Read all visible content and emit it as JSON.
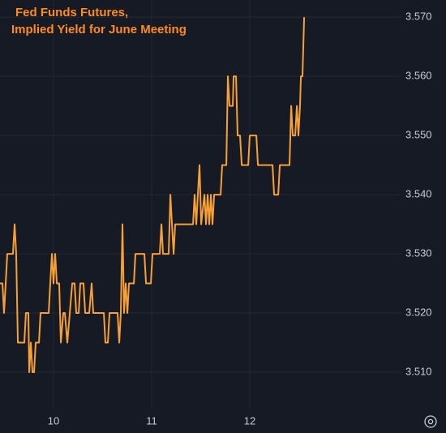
{
  "chart_data": {
    "type": "line",
    "title": [
      "Fed Funds Futures,",
      "Implied Yield for June Meeting"
    ],
    "x": [
      9.455,
      9.48,
      9.496,
      9.513,
      9.529,
      9.587,
      9.604,
      9.62,
      9.637,
      9.703,
      9.719,
      9.744,
      9.753,
      9.769,
      9.786,
      9.802,
      9.819,
      9.852,
      9.868,
      9.951,
      9.967,
      9.984,
      10.0,
      10.017,
      10.034,
      10.058,
      10.075,
      10.1,
      10.116,
      10.141,
      10.166,
      10.191,
      10.215,
      10.232,
      10.257,
      10.273,
      10.306,
      10.323,
      10.364,
      10.389,
      10.405,
      10.513,
      10.529,
      10.554,
      10.571,
      10.653,
      10.67,
      10.686,
      10.703,
      10.719,
      10.736,
      10.753,
      10.769,
      10.819,
      10.835,
      10.926,
      10.943,
      10.992,
      11.009,
      11.083,
      11.1,
      11.116,
      11.174,
      11.191,
      11.207,
      11.224,
      11.24,
      11.257,
      11.422,
      11.438,
      11.455,
      11.471,
      11.488,
      11.505,
      11.538,
      11.554,
      11.571,
      11.587,
      11.604,
      11.62,
      11.637,
      11.703,
      11.719,
      11.761,
      11.777,
      11.794,
      11.827,
      11.835,
      11.86,
      11.876,
      11.901,
      11.918,
      11.984,
      12.0,
      12.067,
      12.083,
      12.232,
      12.248,
      12.29,
      12.306,
      12.405,
      12.422,
      12.438,
      12.463,
      12.48,
      12.496,
      12.512,
      12.521,
      12.537,
      12.554
    ],
    "series": [
      {
        "color": "#f7a035",
        "values": [
          3.525,
          3.525,
          3.52,
          3.525,
          3.53,
          3.53,
          3.535,
          3.53,
          3.515,
          3.515,
          3.52,
          3.52,
          3.51,
          3.515,
          3.51,
          3.51,
          3.515,
          3.515,
          3.52,
          3.52,
          3.525,
          3.53,
          3.525,
          3.53,
          3.525,
          3.525,
          3.515,
          3.52,
          3.52,
          3.515,
          3.52,
          3.525,
          3.525,
          3.52,
          3.52,
          3.525,
          3.525,
          3.52,
          3.52,
          3.525,
          3.52,
          3.52,
          3.515,
          3.515,
          3.52,
          3.52,
          3.515,
          3.52,
          3.535,
          3.52,
          3.525,
          3.52,
          3.525,
          3.525,
          3.53,
          3.53,
          3.525,
          3.525,
          3.53,
          3.53,
          3.535,
          3.53,
          3.53,
          3.54,
          3.535,
          3.53,
          3.535,
          3.535,
          3.535,
          3.54,
          3.535,
          3.54,
          3.545,
          3.535,
          3.54,
          3.535,
          3.54,
          3.535,
          3.54,
          3.535,
          3.54,
          3.54,
          3.545,
          3.545,
          3.56,
          3.555,
          3.555,
          3.56,
          3.56,
          3.55,
          3.55,
          3.545,
          3.545,
          3.55,
          3.55,
          3.545,
          3.545,
          3.54,
          3.54,
          3.545,
          3.545,
          3.555,
          3.55,
          3.55,
          3.555,
          3.55,
          3.555,
          3.56,
          3.56,
          3.57
        ]
      }
    ],
    "xlim": [
      9.455,
      13.545
    ],
    "xticks": [
      10,
      11,
      12
    ],
    "ylim": [
      3.5037,
      3.5729
    ],
    "yticks": [
      {
        "value": 3.51,
        "label": "3.510"
      },
      {
        "value": 3.52,
        "label": "3.520"
      },
      {
        "value": 3.53,
        "label": "3.530"
      },
      {
        "value": 3.54,
        "label": "3.540"
      },
      {
        "value": 3.55,
        "label": "3.550"
      },
      {
        "value": 3.56,
        "label": "3.560"
      },
      {
        "value": 3.57,
        "label": "3.570"
      }
    ],
    "grid": true
  }
}
